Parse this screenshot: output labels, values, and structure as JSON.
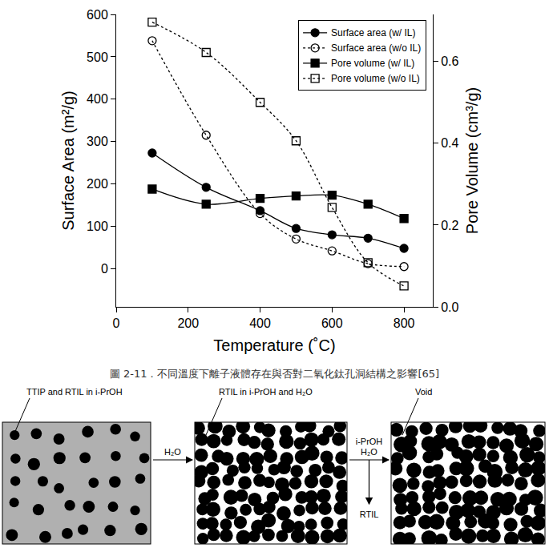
{
  "chart_data": {
    "type": "line",
    "x_label": "Temperature (˚C)",
    "y_label": "Surface Area (m²/g)",
    "y2_label": "Pore Volume (cm³/g)",
    "x": [
      100,
      250,
      400,
      500,
      600,
      700,
      800
    ],
    "xlim": [
      0,
      880
    ],
    "xticks": [
      0,
      200,
      400,
      600,
      800
    ],
    "ylim": [
      -90,
      600
    ],
    "yticks": [
      0,
      100,
      200,
      300,
      400,
      500,
      600
    ],
    "y2lim": [
      0,
      0.715
    ],
    "y2ticks": [
      {
        "value": 0,
        "label": "0.0"
      },
      0.2,
      0.4,
      0.6
    ],
    "grid": false,
    "legend": "upper right",
    "series": [
      {
        "name": "Surface area (w/ IL)",
        "color": "#000000",
        "marker": "circle",
        "line_style": "solid",
        "values": [
          273,
          192,
          137,
          95,
          80,
          72,
          48
        ]
      },
      {
        "name": "Surface area (w/o IL)",
        "color": "#000000",
        "marker": "circle-open",
        "line_style": "dot",
        "values": [
          538,
          315,
          130,
          70,
          42,
          12,
          5
        ]
      },
      {
        "name": "Pore volume (w/ IL)",
        "color": "#000000",
        "marker": "square",
        "line_style": "solid",
        "axis": "y2",
        "values": [
          0.288,
          0.251,
          0.265,
          0.271,
          0.273,
          0.251,
          0.216
        ]
      },
      {
        "name": "Pore volume (w/o IL)",
        "color": "#000000",
        "marker": "square-open",
        "line_style": "dot",
        "axis": "y2",
        "values": [
          0.696,
          0.622,
          0.5,
          0.406,
          0.243,
          0.108,
          0.051
        ]
      }
    ]
  },
  "caption": "圖 2-11．不同溫度下離子液體存在與否對二氧化鈦孔洞結構之影響[65]",
  "diagram": {
    "panels": [
      {
        "label": "TTIP and RTIL in i-PrOH"
      },
      {
        "label": "RTIL in i-PrOH and H₂O"
      },
      {
        "label": "Void"
      }
    ],
    "arrows": [
      {
        "labels": [
          "H₂O"
        ]
      },
      {
        "labels": [
          "i-PrOH",
          "H₂O"
        ],
        "out": "RTIL"
      }
    ]
  }
}
